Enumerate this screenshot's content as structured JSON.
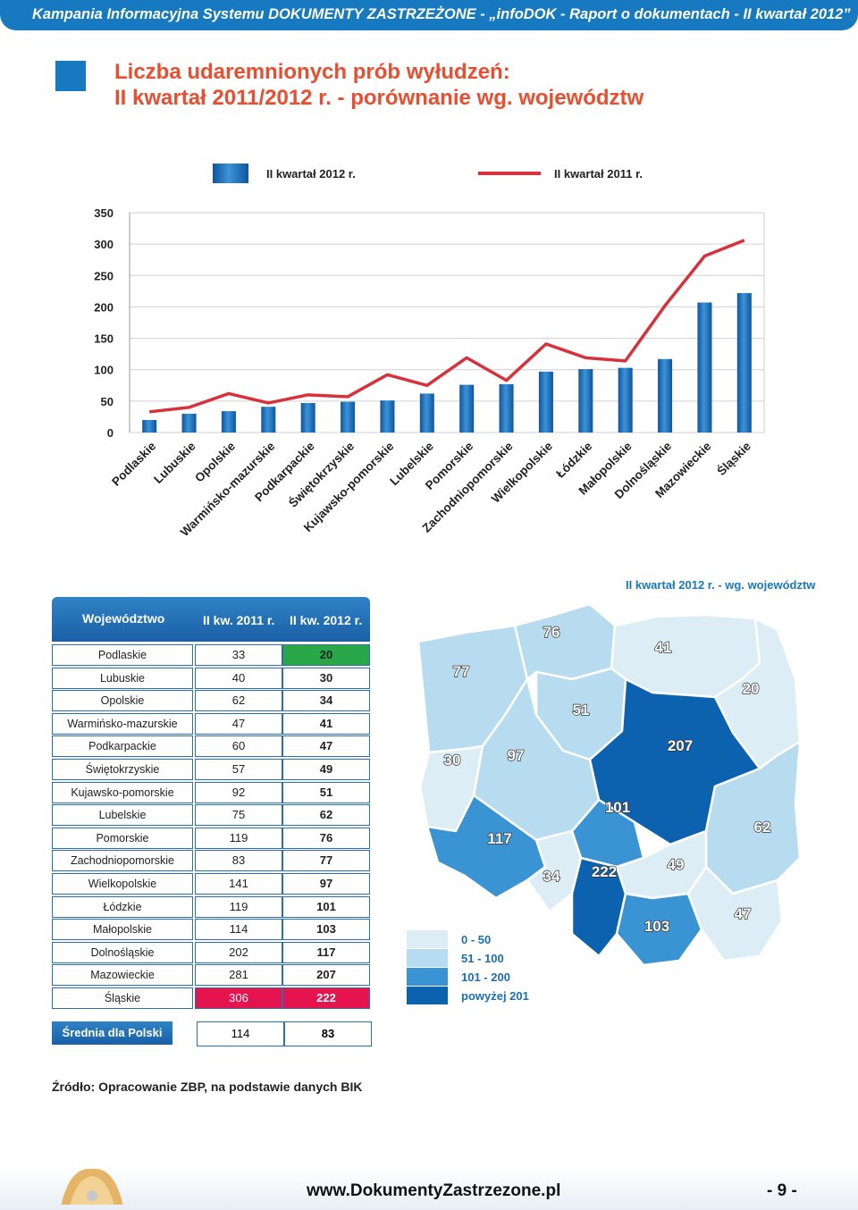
{
  "header": {
    "text": "Kampania Informacyjna Systemu DOKUMENTY ZASTRZEŻONE - „infoDOK - Raport o dokumentach - II kwartał 2012”"
  },
  "title": {
    "line1": "Liczba udaremnionych prób wyłudzeń:",
    "line2": "II kwartał 2011/2012 r. - porównanie wg. województw"
  },
  "colors": {
    "brand": "#1779bf",
    "title": "#e84e2f",
    "bar": "#1767b4",
    "line": "#d7313c",
    "low_cell": "#29a84a",
    "high_cell": "#e5144f"
  },
  "chart_data": {
    "type": "bar",
    "categories": [
      "Podlaskie",
      "Lubuskie",
      "Opolskie",
      "Warmińsko-mazurskie",
      "Podkarpackie",
      "Świętokrzyskie",
      "Kujawsko-pomorskie",
      "Lubelskie",
      "Pomorskie",
      "Zachodniopomorskie",
      "Wielkopolskie",
      "Łódzkie",
      "Małopolskie",
      "Dolnośląskie",
      "Mazowieckie",
      "Śląskie"
    ],
    "series": [
      {
        "name": "II kwartał 2012 r.",
        "type": "bar",
        "values": [
          20,
          30,
          34,
          41,
          47,
          49,
          51,
          62,
          76,
          77,
          97,
          101,
          103,
          117,
          207,
          222
        ]
      },
      {
        "name": "II kwartał 2011 r.",
        "type": "line",
        "values": [
          33,
          40,
          62,
          47,
          60,
          57,
          92,
          75,
          119,
          83,
          141,
          119,
          114,
          202,
          281,
          306
        ]
      }
    ],
    "yticks": [
      0,
      50,
      100,
      150,
      200,
      250,
      300,
      350
    ],
    "ylim": [
      0,
      350
    ],
    "grid": true,
    "legend_position": "top"
  },
  "table": {
    "col_region": "Województwo",
    "col_2011": "II kw. 2011 r.",
    "col_2012": "II kw. 2012 r.",
    "rows": [
      {
        "name": "Podlaskie",
        "v2011": "33",
        "v2012": "20"
      },
      {
        "name": "Lubuskie",
        "v2011": "40",
        "v2012": "30"
      },
      {
        "name": "Opolskie",
        "v2011": "62",
        "v2012": "34"
      },
      {
        "name": "Warmińsko-mazurskie",
        "v2011": "47",
        "v2012": "41"
      },
      {
        "name": "Podkarpackie",
        "v2011": "60",
        "v2012": "47"
      },
      {
        "name": "Świętokrzyskie",
        "v2011": "57",
        "v2012": "49"
      },
      {
        "name": "Kujawsko-pomorskie",
        "v2011": "92",
        "v2012": "51"
      },
      {
        "name": "Lubelskie",
        "v2011": "75",
        "v2012": "62"
      },
      {
        "name": "Pomorskie",
        "v2011": "119",
        "v2012": "76"
      },
      {
        "name": "Zachodniopomorskie",
        "v2011": "83",
        "v2012": "77"
      },
      {
        "name": "Wielkopolskie",
        "v2011": "141",
        "v2012": "97"
      },
      {
        "name": "Łódzkie",
        "v2011": "119",
        "v2012": "101"
      },
      {
        "name": "Małopolskie",
        "v2011": "114",
        "v2012": "103"
      },
      {
        "name": "Dolnośląskie",
        "v2011": "202",
        "v2012": "117"
      },
      {
        "name": "Mazowieckie",
        "v2011": "281",
        "v2012": "207"
      },
      {
        "name": "Śląskie",
        "v2011": "306",
        "v2012": "222"
      }
    ],
    "average": {
      "label": "Średnia dla Polski",
      "v2011": "114",
      "v2012": "83"
    }
  },
  "map": {
    "title": "II  kwartał 2012 r. - wg. województw",
    "legend": [
      {
        "label": "0 - 50",
        "color": "#dcedf6"
      },
      {
        "label": "51 - 100",
        "color": "#b7dbef"
      },
      {
        "label": "101 - 200",
        "color": "#3a93d3"
      },
      {
        "label": "powyżej 201",
        "color": "#0d62b0"
      }
    ],
    "regions": [
      {
        "name": "Zachodniopomorskie",
        "value": "77"
      },
      {
        "name": "Pomorskie",
        "value": "76"
      },
      {
        "name": "Warmińsko-mazurskie",
        "value": "41"
      },
      {
        "name": "Podlaskie",
        "value": "20"
      },
      {
        "name": "Kujawsko-pomorskie",
        "value": "51"
      },
      {
        "name": "Lubuskie",
        "value": "30"
      },
      {
        "name": "Wielkopolskie",
        "value": "97"
      },
      {
        "name": "Mazowieckie",
        "value": "207"
      },
      {
        "name": "Łódzkie",
        "value": "101"
      },
      {
        "name": "Dolnośląskie",
        "value": "117"
      },
      {
        "name": "Lubelskie",
        "value": "62"
      },
      {
        "name": "Opolskie",
        "value": "34"
      },
      {
        "name": "Śląskie",
        "value": "222"
      },
      {
        "name": "Świętokrzyskie",
        "value": "49"
      },
      {
        "name": "Małopolskie",
        "value": "103"
      },
      {
        "name": "Podkarpackie",
        "value": "47"
      }
    ]
  },
  "source": "Źródło: Opracowanie ZBP, na podstawie danych BIK",
  "footer": {
    "url": "www.DokumentyZastrzezone.pl",
    "page": "- 9 -"
  }
}
